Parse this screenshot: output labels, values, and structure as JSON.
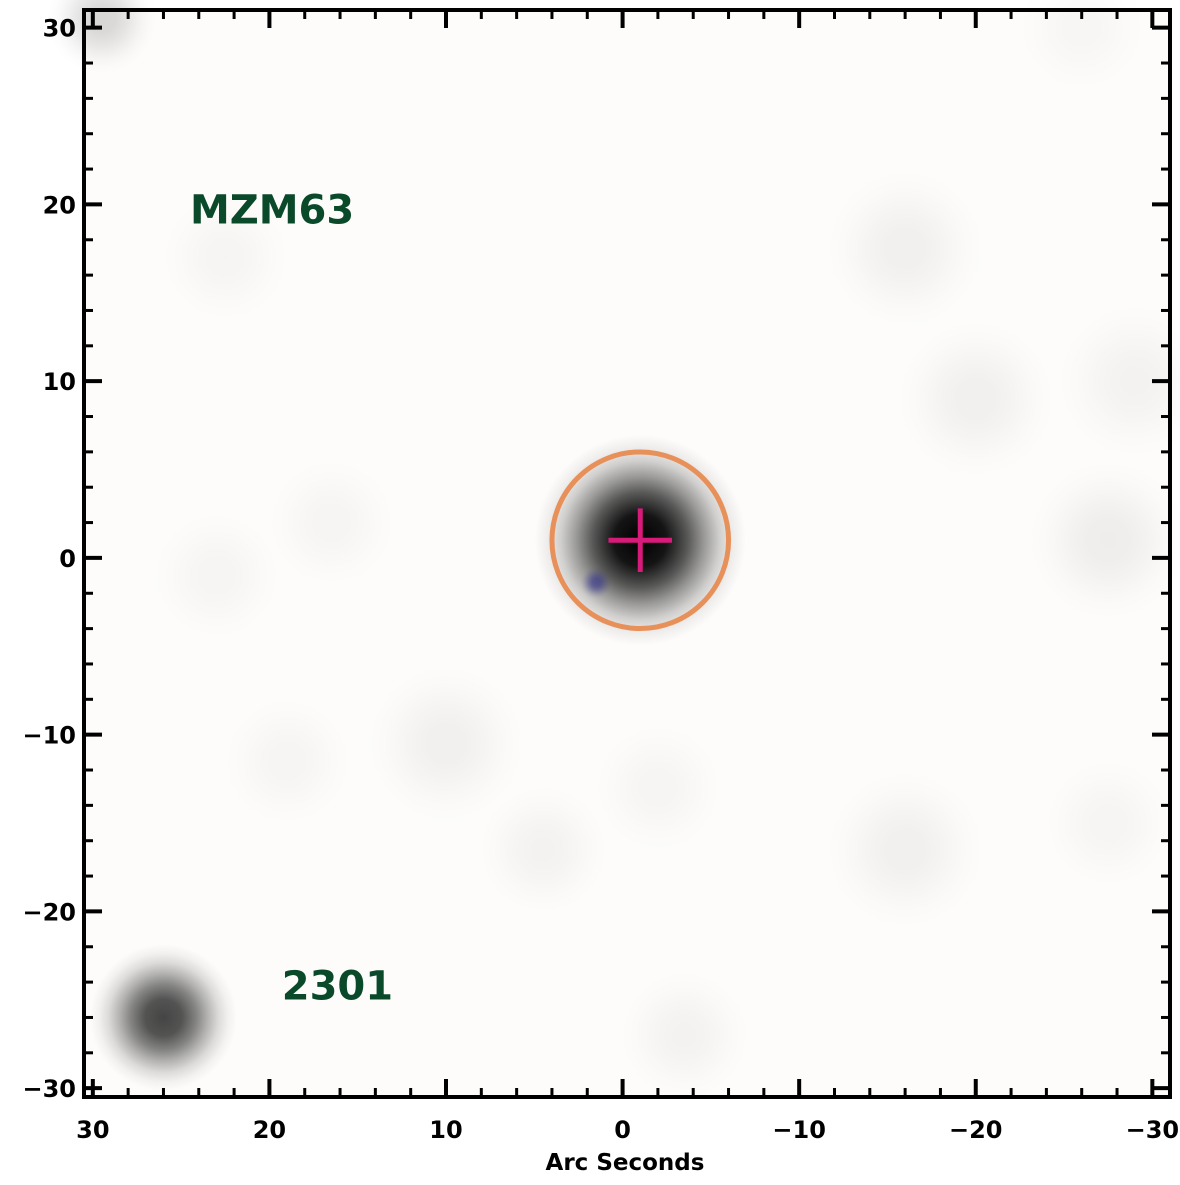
{
  "chart_data": {
    "type": "scatter",
    "title": "",
    "xlabel": "Arc Seconds",
    "ylabel": "",
    "xlim": [
      30.5,
      -31.0
    ],
    "ylim": [
      -30.5,
      31.0
    ],
    "x_ticks": [
      30,
      20,
      10,
      0,
      -10,
      -20,
      -30
    ],
    "y_ticks": [
      30,
      20,
      10,
      0,
      -10,
      -20,
      -30
    ],
    "x_tick_labels": [
      "30",
      "20",
      "10",
      "0",
      "−10",
      "−20",
      "−30"
    ],
    "y_tick_labels": [
      "30",
      "20",
      "10",
      "0",
      "−10",
      "−20",
      "−30"
    ],
    "grid": false,
    "annotations": [
      {
        "text": "MZM63",
        "x": 24.5,
        "y": 19.7,
        "color": "#0a4a2a"
      },
      {
        "text": "2301",
        "x": 19.3,
        "y": -24.2,
        "color": "#0a4a2a"
      }
    ],
    "sources": [
      {
        "x": -1.0,
        "y": 1.0,
        "sigma": 2.3,
        "peak": 1.0,
        "color": "#000000"
      },
      {
        "x": 26.0,
        "y": -26.0,
        "sigma": 1.6,
        "peak": 0.78,
        "color": "#111111"
      },
      {
        "x": 1.5,
        "y": -1.4,
        "sigma": 0.35,
        "peak": 0.6,
        "color": "#2a2a8a"
      },
      {
        "x": 29.5,
        "y": 30.5,
        "sigma": 1.2,
        "peak": 0.15,
        "color": "#000000"
      },
      {
        "x": -16.0,
        "y": 17.5,
        "sigma": 1.8,
        "peak": 0.05,
        "color": "#000000"
      },
      {
        "x": -20.0,
        "y": 9.0,
        "sigma": 1.8,
        "peak": 0.05,
        "color": "#000000"
      },
      {
        "x": -27.5,
        "y": 1.0,
        "sigma": 1.8,
        "peak": 0.06,
        "color": "#000000"
      },
      {
        "x": -29.0,
        "y": 10.0,
        "sigma": 1.8,
        "peak": 0.04,
        "color": "#000000"
      },
      {
        "x": 10.0,
        "y": -10.5,
        "sigma": 1.8,
        "peak": 0.05,
        "color": "#000000"
      },
      {
        "x": 4.5,
        "y": -16.5,
        "sigma": 1.5,
        "peak": 0.04,
        "color": "#000000"
      },
      {
        "x": -16.0,
        "y": -16.5,
        "sigma": 1.8,
        "peak": 0.05,
        "color": "#000000"
      },
      {
        "x": -3.5,
        "y": -27.0,
        "sigma": 1.5,
        "peak": 0.04,
        "color": "#000000"
      },
      {
        "x": 22.5,
        "y": 17.0,
        "sigma": 1.5,
        "peak": 0.03,
        "color": "#000000"
      },
      {
        "x": 16.5,
        "y": 2.0,
        "sigma": 1.5,
        "peak": 0.03,
        "color": "#000000"
      },
      {
        "x": 23.0,
        "y": -1.0,
        "sigma": 1.5,
        "peak": 0.03,
        "color": "#000000"
      },
      {
        "x": 19.0,
        "y": -11.5,
        "sigma": 1.5,
        "peak": 0.03,
        "color": "#000000"
      },
      {
        "x": -2.0,
        "y": -13.0,
        "sigma": 1.5,
        "peak": 0.03,
        "color": "#000000"
      },
      {
        "x": -27.5,
        "y": -15.0,
        "sigma": 1.5,
        "peak": 0.03,
        "color": "#000000"
      },
      {
        "x": -26.0,
        "y": 30.0,
        "sigma": 1.5,
        "peak": 0.025,
        "color": "#000000"
      }
    ],
    "aperture_circle": {
      "x": -1.0,
      "y": 1.0,
      "radius": 5.0,
      "color": "#e8905a"
    },
    "crosshair": {
      "x": -1.0,
      "y": 1.0,
      "half_size": 1.8,
      "color": "#d81b7a"
    },
    "colors": {
      "background": "#fdfcfa",
      "axis": "#000000"
    }
  }
}
